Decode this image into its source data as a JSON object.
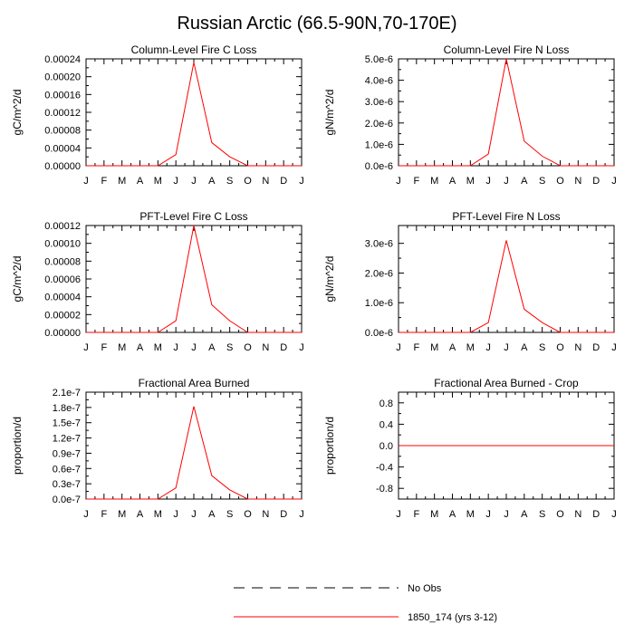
{
  "figure": {
    "title": "Russian Arctic (66.5-90N,70-170E)"
  },
  "colors": {
    "model": "#ff0000",
    "axis": "#000000",
    "obs": "#000000"
  },
  "legend": {
    "obs_label": "No Obs",
    "model_label": "1850_174 (yrs 3-12)"
  },
  "chart_data": [
    {
      "type": "line",
      "title": "Column-Level Fire C Loss",
      "ylabel": "gC/m^2/d",
      "categories": [
        "J",
        "F",
        "M",
        "A",
        "M",
        "J",
        "J",
        "A",
        "S",
        "O",
        "N",
        "D",
        "J"
      ],
      "ylim": [
        0,
        0.00024
      ],
      "yticks": [
        0,
        4e-05,
        8e-05,
        0.00012,
        0.00016,
        0.0002,
        0.00024
      ],
      "ytick_labels": [
        "0.00000",
        "0.00004",
        "0.00008",
        "0.00012",
        "0.00016",
        "0.00020",
        "0.00024"
      ],
      "series": [
        {
          "name": "1850_174 (yrs 3-12)",
          "values": [
            0,
            0,
            0,
            0,
            0,
            2.5e-05,
            0.000232,
            5.2e-05,
            2e-05,
            0,
            0,
            0,
            0
          ]
        }
      ]
    },
    {
      "type": "line",
      "title": "Column-Level Fire N Loss",
      "ylabel": "gN/m^2/d",
      "categories": [
        "J",
        "F",
        "M",
        "A",
        "M",
        "J",
        "J",
        "A",
        "S",
        "O",
        "N",
        "D",
        "J"
      ],
      "ylim": [
        0,
        5e-06
      ],
      "yticks": [
        0,
        1e-06,
        2e-06,
        3e-06,
        4e-06,
        5e-06
      ],
      "ytick_labels": [
        "0.0e-6",
        "1.0e-6",
        "2.0e-6",
        "3.0e-6",
        "4.0e-6",
        "5.0e-6"
      ],
      "series": [
        {
          "name": "1850_174 (yrs 3-12)",
          "values": [
            0,
            0,
            0,
            0,
            0,
            5.5e-07,
            5e-06,
            1.15e-06,
            4.5e-07,
            0,
            0,
            0,
            0
          ]
        }
      ]
    },
    {
      "type": "line",
      "title": "PFT-Level Fire C Loss",
      "ylabel": "gC/m^2/d",
      "categories": [
        "J",
        "F",
        "M",
        "A",
        "M",
        "J",
        "J",
        "A",
        "S",
        "O",
        "N",
        "D",
        "J"
      ],
      "ylim": [
        0,
        0.00012
      ],
      "yticks": [
        0,
        2e-05,
        4e-05,
        6e-05,
        8e-05,
        0.0001,
        0.00012
      ],
      "ytick_labels": [
        "0.00000",
        "0.00002",
        "0.00004",
        "0.00006",
        "0.00008",
        "0.00010",
        "0.00012"
      ],
      "series": [
        {
          "name": "1850_174 (yrs 3-12)",
          "values": [
            0,
            0,
            0,
            0,
            0,
            1.3e-05,
            0.00012,
            3.1e-05,
            1.3e-05,
            0,
            0,
            0,
            0
          ]
        }
      ]
    },
    {
      "type": "line",
      "title": "PFT-Level Fire N Loss",
      "ylabel": "gN/m^2/d",
      "categories": [
        "J",
        "F",
        "M",
        "A",
        "M",
        "J",
        "J",
        "A",
        "S",
        "O",
        "N",
        "D",
        "J"
      ],
      "ylim": [
        0,
        3.6e-06
      ],
      "yticks": [
        0,
        1e-06,
        2e-06,
        3e-06
      ],
      "ytick_labels": [
        "0.0e-6",
        "1.0e-6",
        "2.0e-6",
        "3.0e-6"
      ],
      "series": [
        {
          "name": "1850_174 (yrs 3-12)",
          "values": [
            0,
            0,
            0,
            0,
            0,
            3.3e-07,
            3.1e-06,
            7.8e-07,
            3.3e-07,
            0,
            0,
            0,
            0
          ]
        }
      ]
    },
    {
      "type": "line",
      "title": "Fractional Area Burned",
      "ylabel": "proportion/d",
      "categories": [
        "J",
        "F",
        "M",
        "A",
        "M",
        "J",
        "J",
        "A",
        "S",
        "O",
        "N",
        "D",
        "J"
      ],
      "ylim": [
        0,
        2.1e-07
      ],
      "yticks": [
        0,
        3e-08,
        6e-08,
        9e-08,
        1.2e-07,
        1.5e-07,
        1.8e-07,
        2.1e-07
      ],
      "ytick_labels": [
        "0.0e-7",
        "0.3e-7",
        "0.6e-7",
        "0.9e-7",
        "1.2e-7",
        "1.5e-7",
        "1.8e-7",
        "2.1e-7"
      ],
      "series": [
        {
          "name": "1850_174 (yrs 3-12)",
          "values": [
            0,
            0,
            0,
            0,
            0,
            2.2e-08,
            1.82e-07,
            4.6e-08,
            1.8e-08,
            0,
            0,
            0,
            0
          ]
        }
      ]
    },
    {
      "type": "line",
      "title": "Fractional Area Burned - Crop",
      "ylabel": "proportion/d",
      "categories": [
        "J",
        "F",
        "M",
        "A",
        "M",
        "J",
        "J",
        "A",
        "S",
        "O",
        "N",
        "D",
        "J"
      ],
      "ylim": [
        -1,
        1
      ],
      "yticks": [
        -0.8,
        -0.4,
        0,
        0.4,
        0.8
      ],
      "ytick_labels": [
        "-0.8",
        "-0.4",
        "0.0",
        "0.4",
        "0.8"
      ],
      "series": [
        {
          "name": "1850_174 (yrs 3-12)",
          "values": [
            0,
            0,
            0,
            0,
            0,
            0,
            0,
            0,
            0,
            0,
            0,
            0,
            0
          ]
        }
      ]
    }
  ]
}
